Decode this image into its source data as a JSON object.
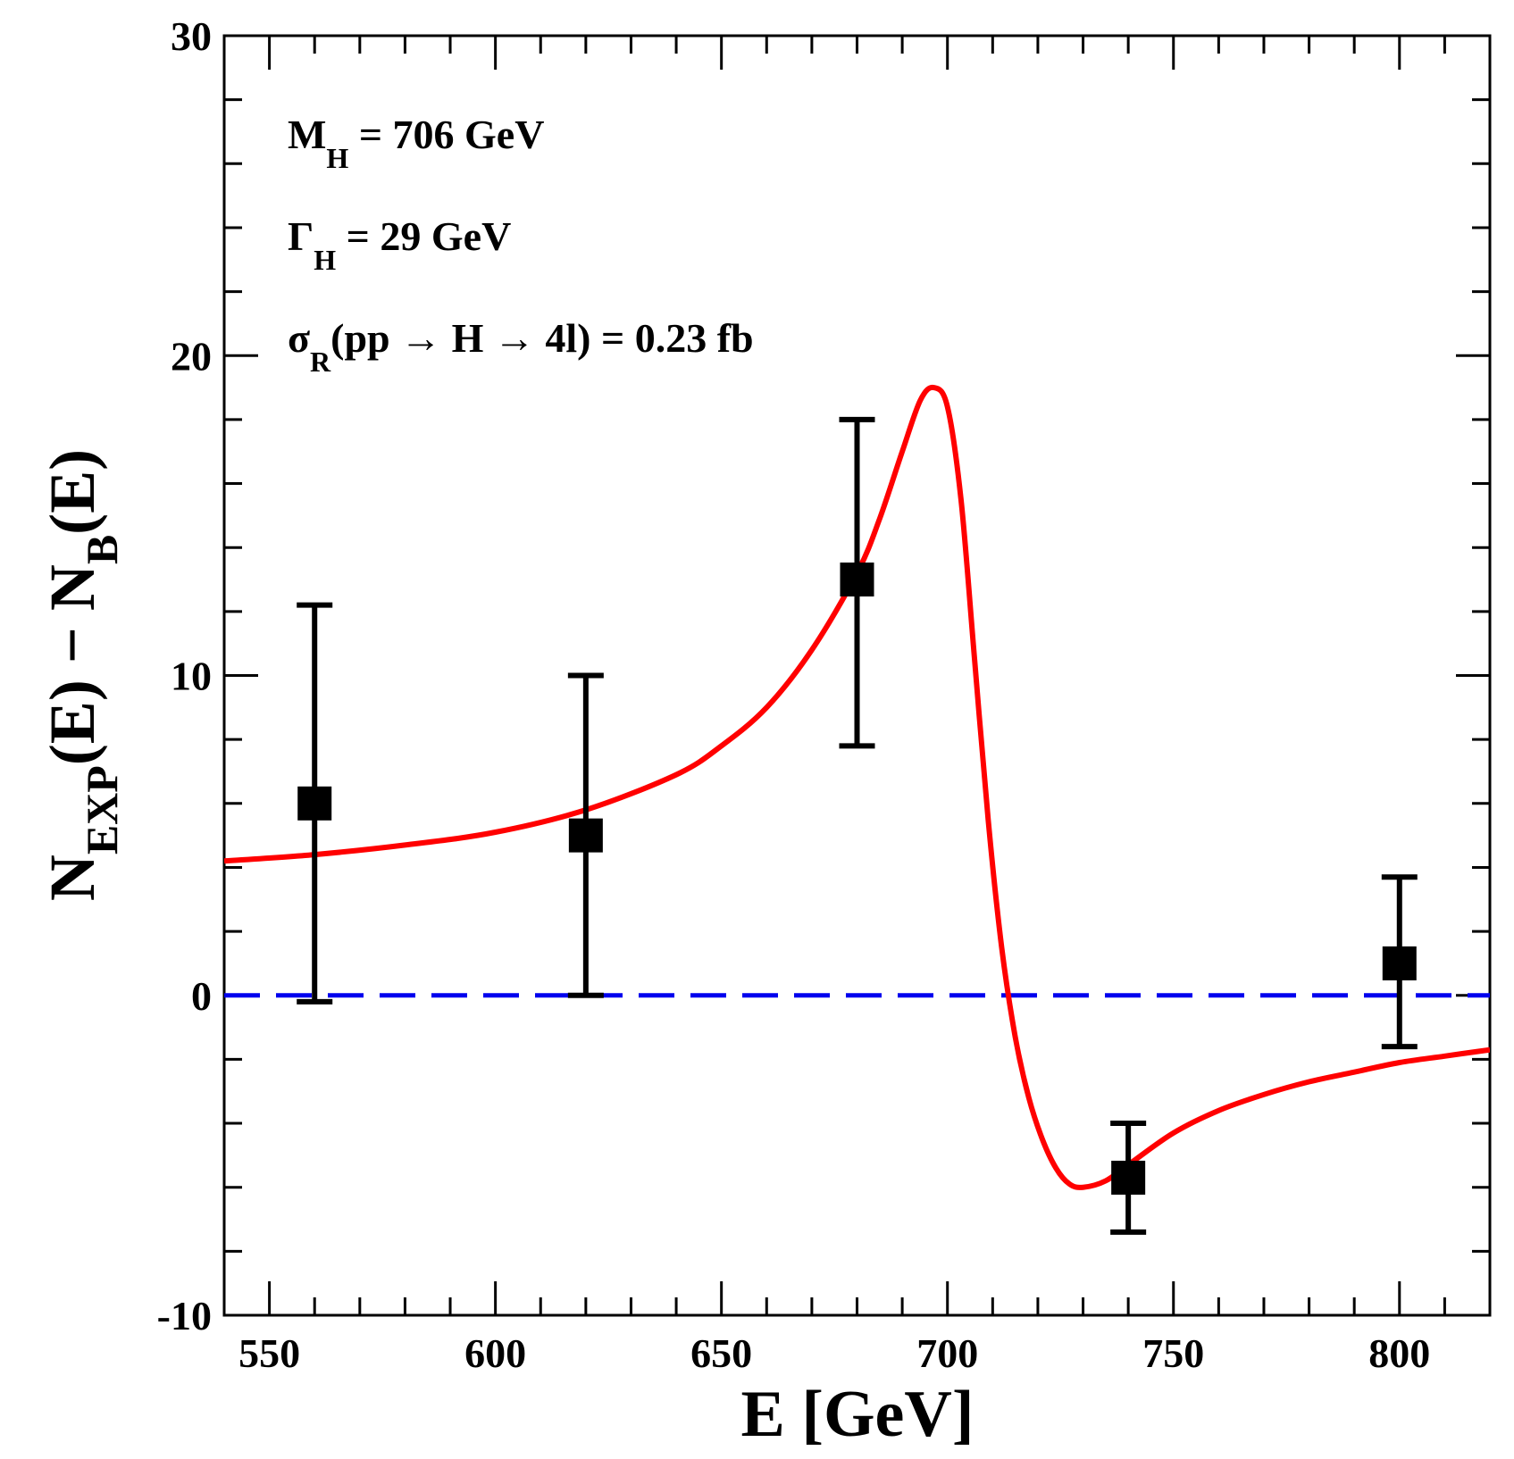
{
  "chart_data": {
    "type": "line",
    "title": "",
    "xlabel": "E [GeV]",
    "ylabel": {
      "base1": "N",
      "sub1": "EXP",
      "mid": "(E) − N",
      "sub2": "B",
      "end": "(E)"
    },
    "xlim": [
      540,
      820
    ],
    "ylim": [
      -10,
      30
    ],
    "xticks": [
      550,
      600,
      650,
      700,
      750,
      800
    ],
    "xtick_labels": [
      "550",
      "600",
      "650",
      "700",
      "750",
      "800"
    ],
    "yticks": [
      -10,
      0,
      10,
      20,
      30
    ],
    "ytick_labels": [
      "-10",
      "0",
      "10",
      "20",
      "30"
    ],
    "x_minor_step": 10,
    "y_minor_step": 2,
    "reference_line": {
      "name": "zero-baseline",
      "y": 0,
      "style": "dashed",
      "color": "#0000ee"
    },
    "model_curve": {
      "name": "resonance-interference-fit",
      "color": "#ff0000",
      "x": [
        540,
        560,
        580,
        600,
        620,
        640,
        650,
        660,
        670,
        680,
        685,
        690,
        694,
        697,
        700,
        703,
        706,
        709,
        712,
        715,
        718,
        721,
        724,
        727,
        730,
        735,
        740,
        750,
        760,
        770,
        780,
        790,
        800,
        810,
        820
      ],
      "y": [
        4.2,
        4.4,
        4.7,
        5.1,
        5.8,
        6.9,
        7.8,
        9.0,
        10.8,
        13.2,
        14.9,
        17.0,
        18.6,
        19.0,
        18.4,
        15.5,
        10.5,
        5.5,
        1.5,
        -1.3,
        -3.2,
        -4.5,
        -5.4,
        -5.9,
        -6.0,
        -5.8,
        -5.3,
        -4.3,
        -3.6,
        -3.1,
        -2.7,
        -2.4,
        -2.1,
        -1.9,
        -1.7
      ]
    },
    "series": [
      {
        "name": "data-points",
        "marker": "square",
        "color": "#000000",
        "x": [
          560,
          620,
          680,
          740,
          800
        ],
        "y": [
          6,
          5,
          13,
          -5.7,
          1
        ],
        "yerr_low": [
          -0.2,
          0,
          7.8,
          -7.4,
          -1.6
        ],
        "yerr_high": [
          12.2,
          10,
          18,
          -4,
          3.7
        ]
      }
    ],
    "annotations": [
      {
        "name": "mass-annotation",
        "symbol": "M",
        "sub": "H",
        "text": " = 706 GeV"
      },
      {
        "name": "width-annotation",
        "symbol": "Γ",
        "sub": "H",
        "text": " = 29 GeV"
      },
      {
        "name": "cross-section-annotation",
        "symbol": "σ",
        "sub": "R",
        "text": "(pp → H → 4l) = 0.23  fb"
      }
    ]
  }
}
